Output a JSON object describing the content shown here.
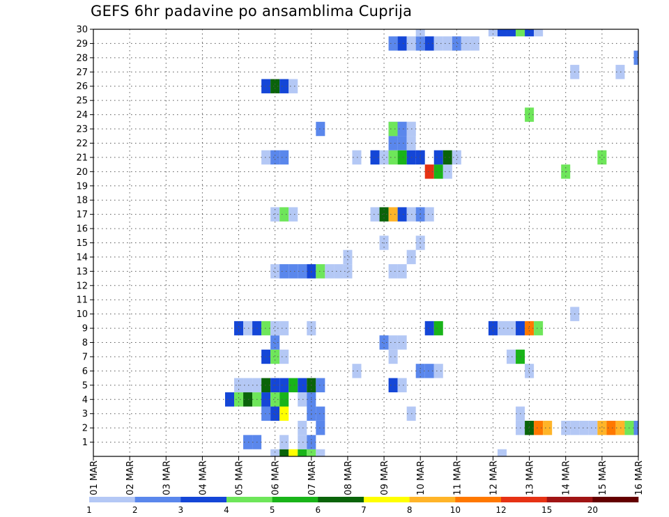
{
  "chart_data": {
    "type": "heatmap",
    "title": "GEFS 6hr padavine po ansamblima Cuprija",
    "xlabel": "",
    "ylabel": "",
    "x_ticks": [
      "01 MAR",
      "02 MAR",
      "03 MAR",
      "04 MAR",
      "05 MAR",
      "06 MAR",
      "07 MAR",
      "08 MAR",
      "09 MAR",
      "10 MAR",
      "11 MAR",
      "12 MAR",
      "13 MAR",
      "14 MAR",
      "15 MAR",
      "16 MAR"
    ],
    "xlim": [
      0,
      60
    ],
    "x_step_hours": 6,
    "y_ticks": [
      1,
      2,
      3,
      4,
      5,
      6,
      7,
      8,
      9,
      10,
      11,
      12,
      13,
      14,
      15,
      16,
      17,
      18,
      19,
      20,
      21,
      22,
      23,
      24,
      25,
      26,
      27,
      28,
      29,
      30
    ],
    "ylim": [
      0,
      30
    ],
    "grid": true,
    "colorbar": {
      "labels": [
        "1",
        "2",
        "3",
        "4",
        "5",
        "6",
        "7",
        "8",
        "10",
        "12",
        "15",
        "20"
      ],
      "colors": [
        "#b4c8f5",
        "#5a87ec",
        "#1446d7",
        "#6ee65a",
        "#19b419",
        "#0a640a",
        "#ffff00",
        "#ffb428",
        "#ff7800",
        "#e63214",
        "#a01414",
        "#640000"
      ]
    },
    "cells": [
      [
        20,
        0,
        1
      ],
      [
        21,
        0,
        6
      ],
      [
        22,
        0,
        7
      ],
      [
        23,
        0,
        5
      ],
      [
        24,
        0,
        4
      ],
      [
        25,
        0,
        1
      ],
      [
        45,
        0,
        1
      ],
      [
        17,
        1,
        2
      ],
      [
        18,
        1,
        2
      ],
      [
        21,
        1,
        1
      ],
      [
        23,
        1,
        1
      ],
      [
        24,
        1,
        2
      ],
      [
        23,
        2,
        1
      ],
      [
        25,
        2,
        2
      ],
      [
        47,
        2,
        1
      ],
      [
        48,
        2,
        6
      ],
      [
        49,
        2,
        9
      ],
      [
        50,
        2,
        8
      ],
      [
        52,
        2,
        1
      ],
      [
        53,
        2,
        1
      ],
      [
        54,
        2,
        1
      ],
      [
        55,
        2,
        1
      ],
      [
        56,
        2,
        8
      ],
      [
        57,
        2,
        9
      ],
      [
        58,
        2,
        8
      ],
      [
        59,
        2,
        4
      ],
      [
        60,
        2,
        2
      ],
      [
        19,
        3,
        2
      ],
      [
        20,
        3,
        3
      ],
      [
        21,
        3,
        7
      ],
      [
        24,
        3,
        2
      ],
      [
        25,
        3,
        2
      ],
      [
        35,
        3,
        1
      ],
      [
        47,
        3,
        1
      ],
      [
        15,
        4,
        3
      ],
      [
        16,
        4,
        4
      ],
      [
        17,
        4,
        6
      ],
      [
        18,
        4,
        4
      ],
      [
        19,
        4,
        3
      ],
      [
        20,
        4,
        4
      ],
      [
        21,
        4,
        5
      ],
      [
        23,
        4,
        1
      ],
      [
        24,
        4,
        2
      ],
      [
        16,
        5,
        1
      ],
      [
        17,
        5,
        1
      ],
      [
        18,
        5,
        1
      ],
      [
        19,
        5,
        6
      ],
      [
        20,
        5,
        3
      ],
      [
        21,
        5,
        3
      ],
      [
        22,
        5,
        5
      ],
      [
        23,
        5,
        3
      ],
      [
        24,
        5,
        6
      ],
      [
        25,
        5,
        2
      ],
      [
        33,
        5,
        3
      ],
      [
        34,
        5,
        1
      ],
      [
        29,
        6,
        1
      ],
      [
        36,
        6,
        2
      ],
      [
        37,
        6,
        2
      ],
      [
        38,
        6,
        1
      ],
      [
        48,
        6,
        1
      ],
      [
        19,
        7,
        3
      ],
      [
        20,
        7,
        4
      ],
      [
        21,
        7,
        1
      ],
      [
        46,
        7,
        1
      ],
      [
        47,
        7,
        5
      ],
      [
        33,
        7,
        1
      ],
      [
        20,
        8,
        2
      ],
      [
        32,
        8,
        2
      ],
      [
        33,
        8,
        1
      ],
      [
        34,
        8,
        1
      ],
      [
        16,
        9,
        3
      ],
      [
        17,
        9,
        1
      ],
      [
        18,
        9,
        3
      ],
      [
        19,
        9,
        4
      ],
      [
        20,
        9,
        1
      ],
      [
        21,
        9,
        1
      ],
      [
        24,
        9,
        1
      ],
      [
        37,
        9,
        3
      ],
      [
        38,
        9,
        5
      ],
      [
        44,
        9,
        3
      ],
      [
        45,
        9,
        1
      ],
      [
        46,
        9,
        1
      ],
      [
        47,
        9,
        3
      ],
      [
        48,
        9,
        9
      ],
      [
        49,
        9,
        4
      ],
      [
        53,
        10,
        1
      ],
      [
        20,
        13,
        1
      ],
      [
        21,
        13,
        2
      ],
      [
        22,
        13,
        2
      ],
      [
        23,
        13,
        2
      ],
      [
        24,
        13,
        3
      ],
      [
        25,
        13,
        4
      ],
      [
        26,
        13,
        1
      ],
      [
        27,
        13,
        1
      ],
      [
        28,
        13,
        1
      ],
      [
        33,
        13,
        1
      ],
      [
        34,
        13,
        1
      ],
      [
        28,
        14,
        1
      ],
      [
        35,
        14,
        1
      ],
      [
        32,
        15,
        1
      ],
      [
        36,
        15,
        1
      ],
      [
        20,
        17,
        1
      ],
      [
        21,
        17,
        4
      ],
      [
        22,
        17,
        1
      ],
      [
        31,
        17,
        1
      ],
      [
        32,
        17,
        6
      ],
      [
        33,
        17,
        8
      ],
      [
        34,
        17,
        3
      ],
      [
        35,
        17,
        1
      ],
      [
        36,
        17,
        2
      ],
      [
        37,
        17,
        1
      ],
      [
        37,
        20,
        10
      ],
      [
        38,
        20,
        5
      ],
      [
        39,
        20,
        1
      ],
      [
        52,
        20,
        4
      ],
      [
        19,
        21,
        1
      ],
      [
        20,
        21,
        2
      ],
      [
        21,
        21,
        2
      ],
      [
        29,
        21,
        1
      ],
      [
        31,
        21,
        3
      ],
      [
        32,
        21,
        1
      ],
      [
        33,
        21,
        4
      ],
      [
        34,
        21,
        5
      ],
      [
        35,
        21,
        3
      ],
      [
        36,
        21,
        3
      ],
      [
        38,
        21,
        3
      ],
      [
        39,
        21,
        6
      ],
      [
        40,
        21,
        1
      ],
      [
        56,
        21,
        4
      ],
      [
        33,
        22,
        2
      ],
      [
        34,
        22,
        2
      ],
      [
        35,
        22,
        1
      ],
      [
        33,
        23,
        2
      ],
      [
        34,
        23,
        2
      ],
      [
        35,
        23,
        1
      ],
      [
        25,
        23,
        2
      ],
      [
        33,
        23,
        4
      ],
      [
        34,
        23,
        2
      ],
      [
        35,
        23,
        1
      ],
      [
        48,
        24,
        4
      ],
      [
        19,
        26,
        3
      ],
      [
        20,
        26,
        6
      ],
      [
        21,
        26,
        3
      ],
      [
        22,
        26,
        1
      ],
      [
        53,
        27,
        1
      ],
      [
        58,
        27,
        1
      ],
      [
        60,
        28,
        2
      ],
      [
        33,
        29,
        2
      ],
      [
        34,
        29,
        3
      ],
      [
        35,
        29,
        1
      ],
      [
        36,
        29,
        2
      ],
      [
        37,
        29,
        3
      ],
      [
        38,
        29,
        1
      ],
      [
        39,
        29,
        1
      ],
      [
        40,
        29,
        2
      ],
      [
        41,
        29,
        1
      ],
      [
        42,
        29,
        1
      ],
      [
        36,
        30,
        1
      ],
      [
        44,
        30,
        1
      ],
      [
        45,
        30,
        3
      ],
      [
        46,
        30,
        3
      ],
      [
        47,
        30,
        4
      ],
      [
        48,
        30,
        3
      ],
      [
        49,
        30,
        1
      ]
    ]
  }
}
